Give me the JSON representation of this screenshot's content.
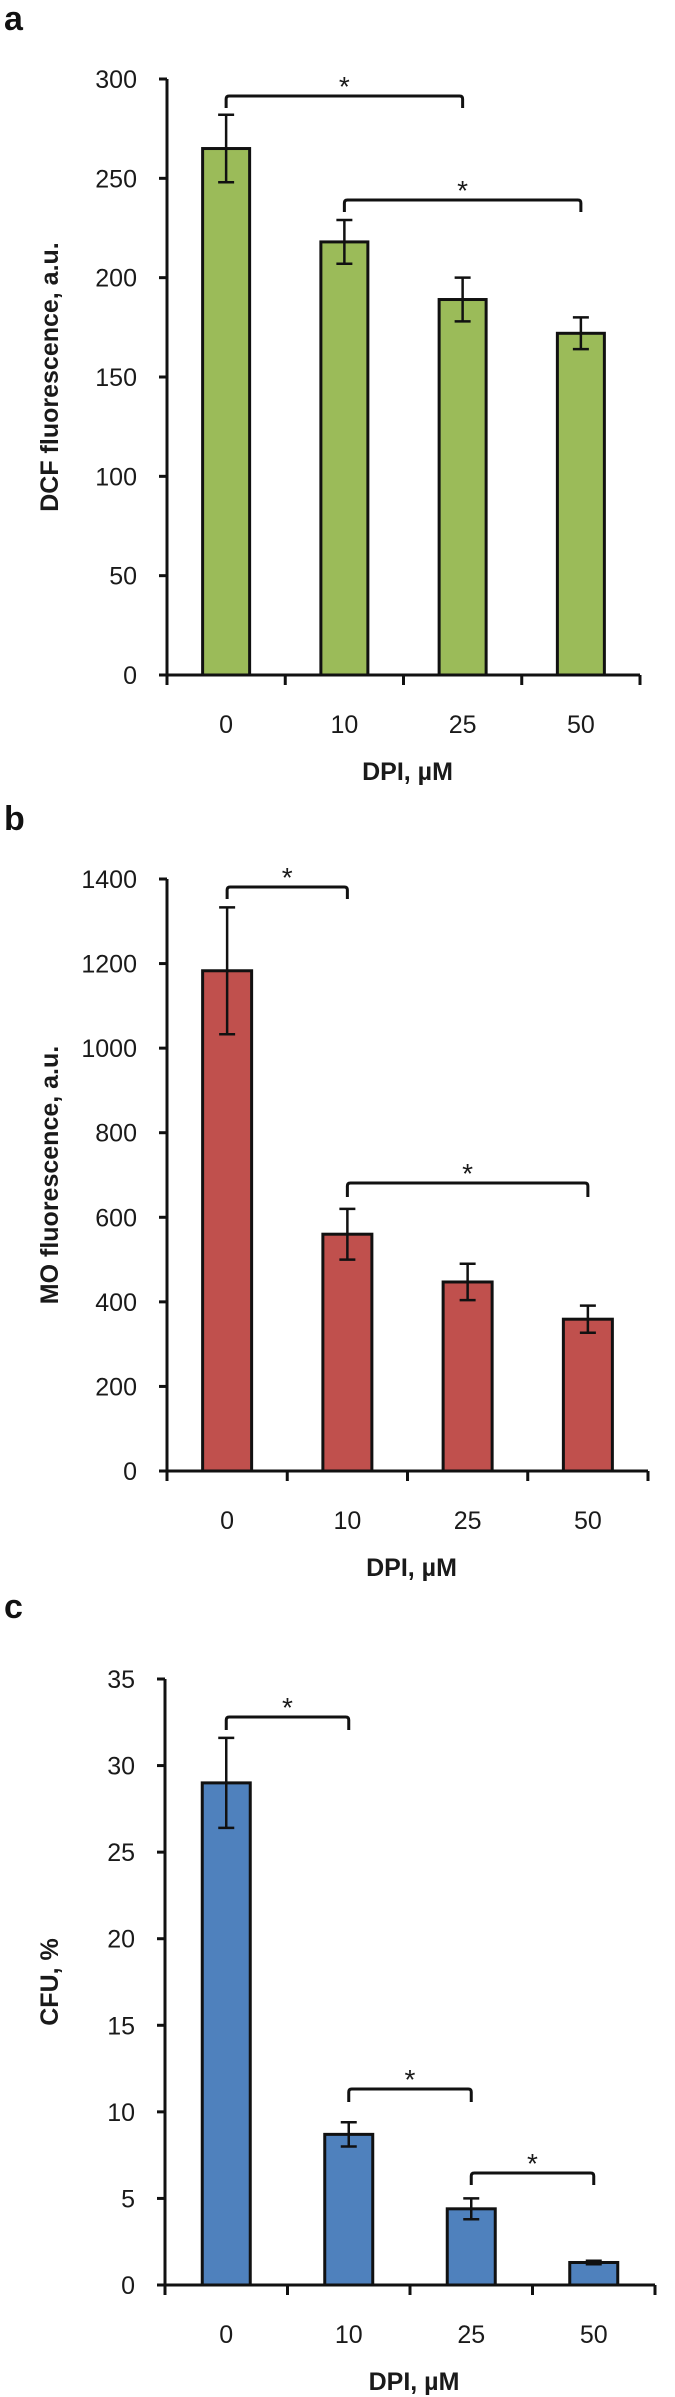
{
  "panels": [
    {
      "letter": "a",
      "ylabel": "DCF fluorescence, a.u.",
      "xlabel": "DPI, µM"
    },
    {
      "letter": "b",
      "ylabel": "MO fluorescence, a.u.",
      "xlabel": "DPI, µM"
    },
    {
      "letter": "c",
      "ylabel": "CFU, %",
      "xlabel": "DPI, µM"
    }
  ],
  "chart_data": [
    {
      "type": "bar",
      "title": "a",
      "xlabel": "DPI, µM",
      "ylabel": "DCF fluorescence, a.u.",
      "categories": [
        "0",
        "10",
        "25",
        "50"
      ],
      "values": [
        265,
        218,
        189,
        172
      ],
      "errors": [
        17,
        11,
        11,
        8
      ],
      "ylim": [
        0,
        300
      ],
      "yticks": [
        0,
        50,
        100,
        150,
        200,
        250,
        300
      ],
      "color": "#9bbb59",
      "grid": false,
      "significance": [
        {
          "from": "0",
          "to": "25",
          "label": "*"
        },
        {
          "from": "10",
          "to": "50",
          "label": "*"
        }
      ]
    },
    {
      "type": "bar",
      "title": "b",
      "xlabel": "DPI, µM",
      "ylabel": "MO fluorescence, a.u.",
      "categories": [
        "0",
        "10",
        "25",
        "50"
      ],
      "values": [
        1183,
        560,
        447,
        359
      ],
      "errors": [
        150,
        60,
        43,
        32
      ],
      "ylim": [
        0,
        1400
      ],
      "yticks": [
        0,
        200,
        400,
        600,
        800,
        1000,
        1200,
        1400
      ],
      "color": "#c0504d",
      "grid": false,
      "significance": [
        {
          "from": "0",
          "to": "10",
          "label": "*"
        },
        {
          "from": "10",
          "to": "50",
          "label": "*"
        }
      ]
    },
    {
      "type": "bar",
      "title": "c",
      "xlabel": "DPI, µM",
      "ylabel": "CFU, %",
      "categories": [
        "0",
        "10",
        "25",
        "50"
      ],
      "values": [
        29.0,
        8.7,
        4.4,
        1.3
      ],
      "errors": [
        2.6,
        0.7,
        0.6,
        0.1
      ],
      "ylim": [
        0,
        35
      ],
      "yticks": [
        0,
        5,
        10,
        15,
        20,
        25,
        30,
        35
      ],
      "color": "#4f81bd",
      "grid": false,
      "significance": [
        {
          "from": "0",
          "to": "10",
          "label": "*"
        },
        {
          "from": "10",
          "to": "25",
          "label": "*"
        },
        {
          "from": "25",
          "to": "50",
          "label": "*"
        }
      ]
    }
  ]
}
